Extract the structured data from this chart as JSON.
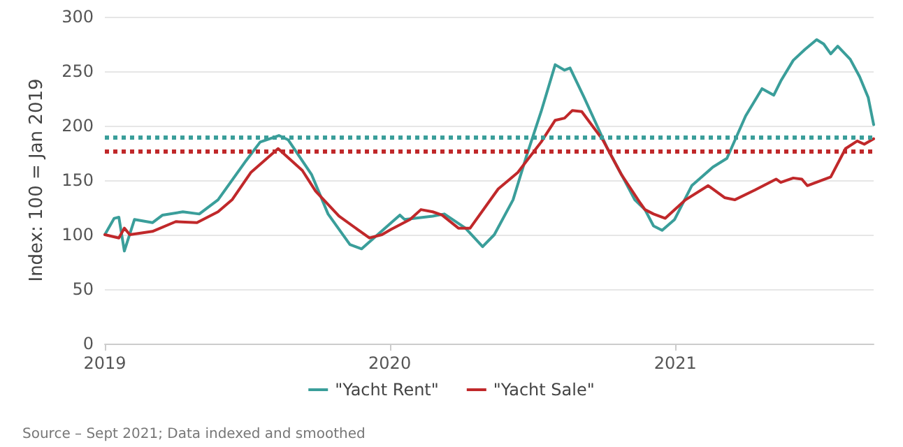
{
  "chart_data": {
    "type": "line",
    "ylabel": "Index: 100 = Jan 2019",
    "annotations": [
      "Source – Sept 2021; Data indexed and smoothed"
    ],
    "xlim": [
      "2019-01-01",
      "2021-09-12"
    ],
    "xticks": [
      {
        "value": "2019-01-01",
        "label": "2019"
      },
      {
        "value": "2020-01-01",
        "label": "2020"
      },
      {
        "value": "2021-01-01",
        "label": "2021"
      }
    ],
    "ylim": [
      0,
      300
    ],
    "yticks": [
      0,
      50,
      100,
      150,
      200,
      250,
      300
    ],
    "grid": "y",
    "legend": "bottom",
    "marker": "none",
    "line_style": "solid",
    "series": [
      {
        "name": "\"Yacht Rent\"",
        "color": "#3a9e9a",
        "x": [
          "2019-01-01",
          "2019-01-13",
          "2019-01-19",
          "2019-01-26",
          "2019-02-08",
          "2019-03-03",
          "2019-03-16",
          "2019-04-11",
          "2019-05-02",
          "2019-05-26",
          "2019-07-01",
          "2019-07-19",
          "2019-08-12",
          "2019-08-24",
          "2019-09-23",
          "2019-10-14",
          "2019-11-11",
          "2019-11-26",
          "2020-01-03",
          "2020-01-14",
          "2020-01-20",
          "2020-02-25",
          "2020-03-11",
          "2020-04-07",
          "2020-04-29",
          "2020-05-14",
          "2020-06-07",
          "2020-06-25",
          "2020-07-13",
          "2020-07-31",
          "2020-08-12",
          "2020-08-19",
          "2020-09-06",
          "2020-10-06",
          "2020-10-24",
          "2020-11-10",
          "2020-11-23",
          "2020-12-04",
          "2020-12-15",
          "2020-12-31",
          "2021-01-22",
          "2021-02-18",
          "2021-03-08",
          "2021-04-01",
          "2021-04-22",
          "2021-05-07",
          "2021-05-16",
          "2021-06-01",
          "2021-06-16",
          "2021-07-01",
          "2021-07-10",
          "2021-07-19",
          "2021-07-28",
          "2021-08-13",
          "2021-08-25",
          "2021-09-05",
          "2021-09-12"
        ],
        "values": [
          100,
          115,
          116,
          85,
          114,
          111,
          118,
          121,
          119,
          132,
          168,
          185,
          191,
          187,
          155,
          119,
          91,
          87,
          111,
          118,
          114,
          117,
          119,
          106,
          89,
          100,
          132,
          174,
          213,
          256,
          251,
          253,
          226,
          179,
          155,
          132,
          123,
          108,
          104,
          114,
          145,
          162,
          170,
          209,
          234,
          228,
          241,
          260,
          270,
          279,
          275,
          266,
          273,
          261,
          245,
          226,
          201
        ]
      },
      {
        "name": "\"Yacht Sale\"",
        "color": "#c0282a",
        "x": [
          "2019-01-01",
          "2019-01-19",
          "2019-01-26",
          "2019-02-02",
          "2019-03-03",
          "2019-04-02",
          "2019-04-29",
          "2019-05-26",
          "2019-06-13",
          "2019-07-07",
          "2019-08-11",
          "2019-09-11",
          "2019-09-28",
          "2019-10-28",
          "2019-12-06",
          "2019-12-22",
          "2020-01-03",
          "2020-01-27",
          "2020-02-10",
          "2020-02-25",
          "2020-03-08",
          "2020-03-29",
          "2020-04-13",
          "2020-05-19",
          "2020-06-13",
          "2020-07-13",
          "2020-07-31",
          "2020-08-12",
          "2020-08-22",
          "2020-09-03",
          "2020-09-30",
          "2020-10-24",
          "2020-11-17",
          "2020-11-23",
          "2020-12-04",
          "2020-12-19",
          "2021-01-14",
          "2021-02-12",
          "2021-03-05",
          "2021-03-18",
          "2021-04-13",
          "2021-05-10",
          "2021-05-16",
          "2021-06-01",
          "2021-06-12",
          "2021-06-19",
          "2021-07-19",
          "2021-08-07",
          "2021-08-22",
          "2021-08-31",
          "2021-09-12"
        ],
        "values": [
          100,
          97,
          106,
          100,
          103,
          112,
          111,
          121,
          132,
          157,
          179,
          159,
          140,
          117,
          97,
          100,
          105,
          114,
          123,
          121,
          118,
          106,
          106,
          142,
          157,
          185,
          205,
          207,
          214,
          213,
          187,
          155,
          129,
          123,
          119,
          115,
          132,
          145,
          134,
          132,
          141,
          151,
          148,
          152,
          151,
          145,
          153,
          179,
          186,
          183,
          188
        ]
      }
    ],
    "ref_lines": [
      {
        "axis": "y",
        "value": 189,
        "color": "#3a9e9a",
        "line_style": "dotted"
      },
      {
        "axis": "y",
        "value": 177,
        "color": "#c0282a",
        "line_style": "dotted"
      }
    ]
  }
}
